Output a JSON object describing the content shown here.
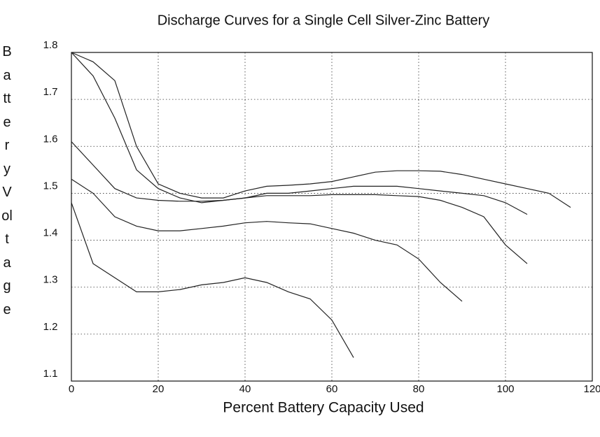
{
  "chart_data": {
    "type": "line",
    "title": "Discharge Curves for a Single Cell Silver-Zinc Battery",
    "x_label": "Percent Battery Capacity Used",
    "y_label": "Battery Voltage",
    "xlim": [
      0,
      120
    ],
    "xticks": [
      0,
      20,
      40,
      60,
      80,
      100,
      120
    ],
    "ylim": [
      1.1,
      1.8
    ],
    "yticks": [
      1.1,
      1.2,
      1.3,
      1.4,
      1.5,
      1.6,
      1.7,
      1.8
    ],
    "grid": true,
    "series": [
      {
        "color": "#222222",
        "x": [
          0,
          5,
          10,
          15,
          20,
          25,
          30,
          35,
          40,
          45,
          50,
          55,
          60,
          65,
          70,
          75,
          80,
          85,
          90,
          95,
          100,
          105,
          110,
          115
        ],
        "values": [
          1.8,
          1.78,
          1.74,
          1.6,
          1.52,
          1.5,
          1.49,
          1.49,
          1.505,
          1.515,
          1.517,
          1.52,
          1.525,
          1.535,
          1.545,
          1.548,
          1.548,
          1.547,
          1.54,
          1.53,
          1.52,
          1.51,
          1.5,
          1.47
        ]
      },
      {
        "color": "#222222",
        "x": [
          0,
          5,
          10,
          15,
          20,
          25,
          30,
          35,
          40,
          45,
          50,
          55,
          60,
          65,
          70,
          75,
          80,
          85,
          90,
          95,
          100,
          105
        ],
        "values": [
          1.8,
          1.75,
          1.66,
          1.55,
          1.51,
          1.49,
          1.48,
          1.485,
          1.49,
          1.5,
          1.5,
          1.505,
          1.51,
          1.515,
          1.515,
          1.515,
          1.51,
          1.505,
          1.5,
          1.495,
          1.48,
          1.455
        ]
      },
      {
        "color": "#222222",
        "x": [
          0,
          5,
          10,
          15,
          20,
          25,
          30,
          35,
          40,
          45,
          50,
          55,
          60,
          65,
          70,
          75,
          80,
          85,
          90,
          95,
          100,
          105
        ],
        "values": [
          1.61,
          1.56,
          1.51,
          1.49,
          1.485,
          1.483,
          1.483,
          1.485,
          1.49,
          1.495,
          1.495,
          1.495,
          1.497,
          1.497,
          1.497,
          1.495,
          1.493,
          1.485,
          1.47,
          1.45,
          1.39,
          1.35
        ]
      },
      {
        "color": "#222222",
        "x": [
          0,
          5,
          10,
          15,
          20,
          25,
          30,
          35,
          40,
          45,
          50,
          55,
          60,
          65,
          70,
          75,
          80,
          85,
          90
        ],
        "values": [
          1.53,
          1.5,
          1.45,
          1.43,
          1.42,
          1.42,
          1.425,
          1.43,
          1.437,
          1.44,
          1.437,
          1.435,
          1.425,
          1.415,
          1.4,
          1.39,
          1.36,
          1.31,
          1.27
        ]
      },
      {
        "color": "#222222",
        "x": [
          0,
          5,
          10,
          15,
          20,
          25,
          30,
          35,
          40,
          45,
          50,
          55,
          60,
          65
        ],
        "values": [
          1.48,
          1.35,
          1.32,
          1.29,
          1.29,
          1.295,
          1.305,
          1.31,
          1.32,
          1.31,
          1.29,
          1.275,
          1.23,
          1.15
        ]
      }
    ]
  }
}
